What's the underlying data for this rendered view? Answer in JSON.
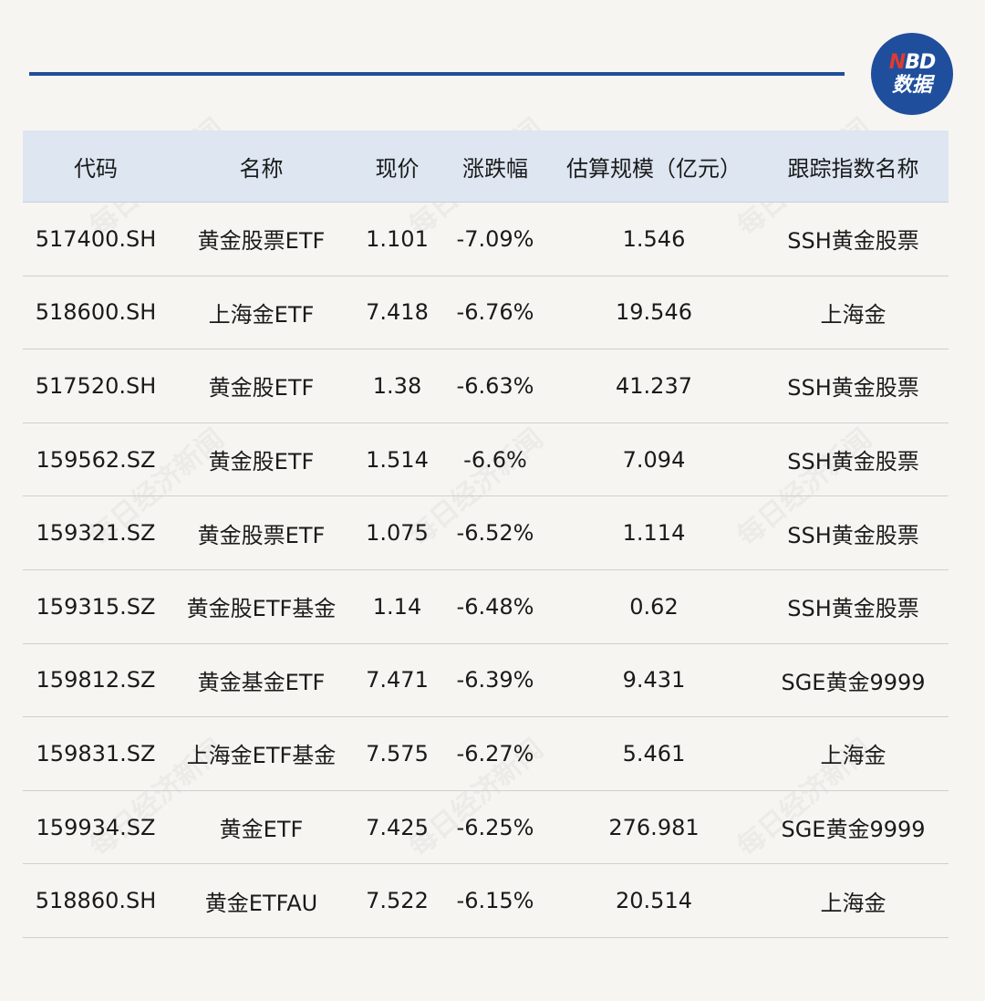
{
  "brand": {
    "logo_top_n": "N",
    "logo_top_rest": "BD",
    "logo_bottom": "数据",
    "accent_color": "#1f4e9c",
    "logo_red": "#e03a2f"
  },
  "watermark_text": "每日经济新闻",
  "table": {
    "headers": [
      "代码",
      "名称",
      "现价",
      "涨跌幅",
      "估算规模（亿元）",
      "跟踪指数名称"
    ],
    "rows": [
      [
        "517400.SH",
        "黄金股票ETF",
        "1.101",
        "-7.09%",
        "1.546",
        "SSH黄金股票"
      ],
      [
        "518600.SH",
        "上海金ETF",
        "7.418",
        "-6.76%",
        "19.546",
        "上海金"
      ],
      [
        "517520.SH",
        "黄金股ETF",
        "1.38",
        "-6.63%",
        "41.237",
        "SSH黄金股票"
      ],
      [
        "159562.SZ",
        "黄金股ETF",
        "1.514",
        "-6.6%",
        "7.094",
        "SSH黄金股票"
      ],
      [
        "159321.SZ",
        "黄金股票ETF",
        "1.075",
        "-6.52%",
        "1.114",
        "SSH黄金股票"
      ],
      [
        "159315.SZ",
        "黄金股ETF基金",
        "1.14",
        "-6.48%",
        "0.62",
        "SSH黄金股票"
      ],
      [
        "159812.SZ",
        "黄金基金ETF",
        "7.471",
        "-6.39%",
        "9.431",
        "SGE黄金9999"
      ],
      [
        "159831.SZ",
        "上海金ETF基金",
        "7.575",
        "-6.27%",
        "5.461",
        "上海金"
      ],
      [
        "159934.SZ",
        "黄金ETF",
        "7.425",
        "-6.25%",
        "276.981",
        "SGE黄金9999"
      ],
      [
        "518860.SH",
        "黄金ETFAU",
        "7.522",
        "-6.15%",
        "20.514",
        "上海金"
      ]
    ]
  }
}
